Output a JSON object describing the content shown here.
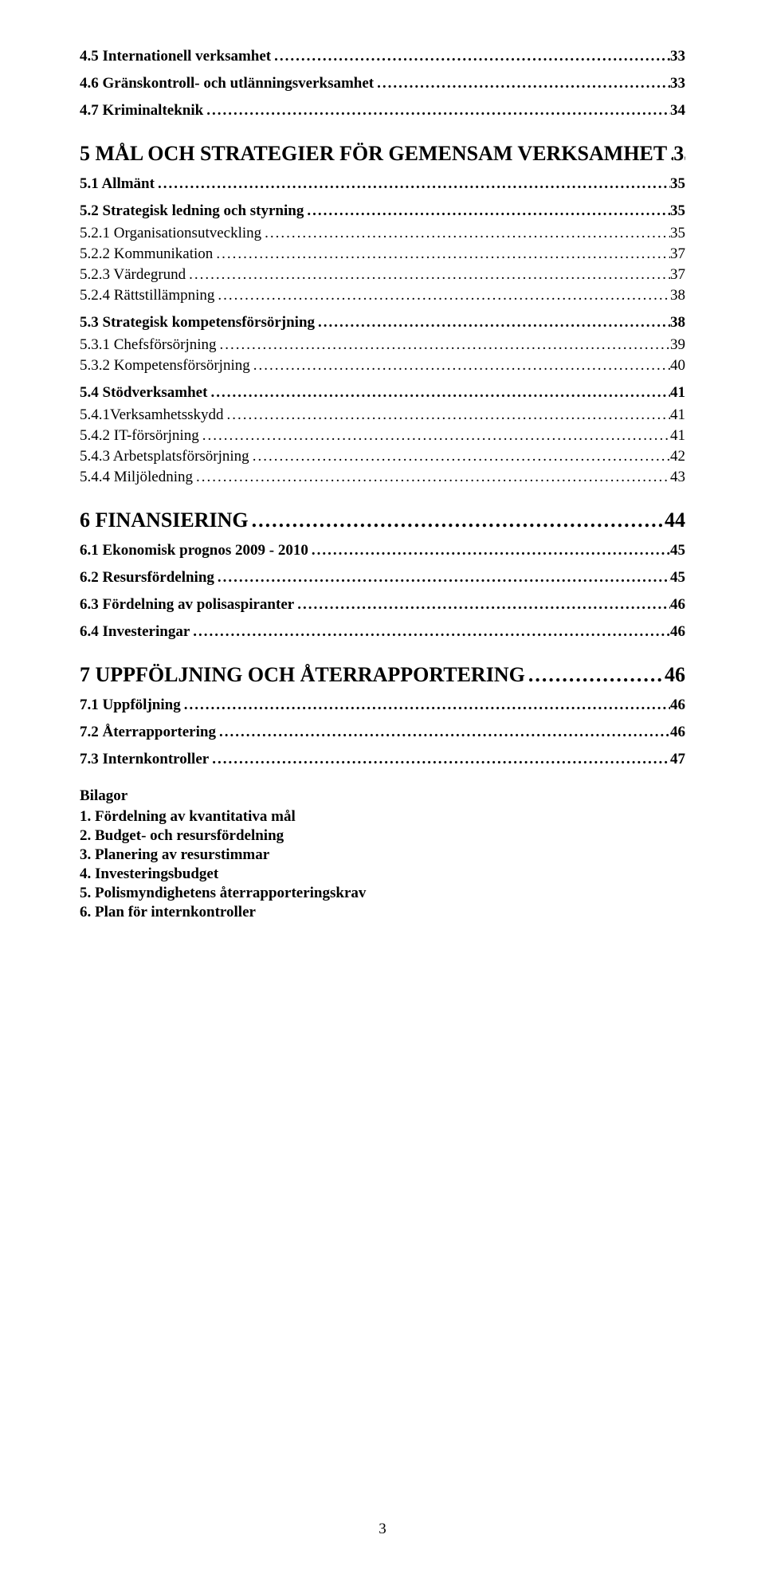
{
  "toc": [
    {
      "level": "h2",
      "label": "4.5 Internationell verksamhet",
      "page": "33"
    },
    {
      "level": "h2",
      "label": "4.6 Gränskontroll- och utlänningsverksamhet",
      "page": "33"
    },
    {
      "level": "h2",
      "label": "4.7 Kriminalteknik",
      "page": "34"
    },
    {
      "level": "h1",
      "label": "5 MÅL OCH STRATEGIER FÖR GEMENSAM VERKSAMHET",
      "page": "35"
    },
    {
      "level": "h2",
      "label": "5.1 Allmänt",
      "page": "35"
    },
    {
      "level": "h2",
      "label": "5.2 Strategisk ledning och styrning",
      "page": "35"
    },
    {
      "level": "h3",
      "label": "5.2.1 Organisationsutveckling",
      "page": "35"
    },
    {
      "level": "h3",
      "label": "5.2.2 Kommunikation",
      "page": "37"
    },
    {
      "level": "h3",
      "label": "5.2.3 Värdegrund",
      "page": "37"
    },
    {
      "level": "h3",
      "label": "5.2.4 Rättstillämpning",
      "page": "38"
    },
    {
      "level": "h2",
      "label": "5.3 Strategisk kompetensförsörjning",
      "page": "38"
    },
    {
      "level": "h3",
      "label": "5.3.1 Chefsförsörjning",
      "page": "39"
    },
    {
      "level": "h3",
      "label": "5.3.2 Kompetensförsörjning",
      "page": "40"
    },
    {
      "level": "h2",
      "label": "5.4 Stödverksamhet",
      "page": "41"
    },
    {
      "level": "h3",
      "label": "5.4.1Verksamhetsskydd",
      "page": "41"
    },
    {
      "level": "h3",
      "label": "5.4.2 IT-försörjning",
      "page": "41"
    },
    {
      "level": "h3",
      "label": "5.4.3 Arbetsplatsförsörjning",
      "page": "42"
    },
    {
      "level": "h3",
      "label": "5.4.4 Miljöledning",
      "page": "43"
    },
    {
      "level": "h1",
      "label": "6 FINANSIERING",
      "page": "44"
    },
    {
      "level": "h2",
      "label": "6.1 Ekonomisk prognos 2009 - 2010",
      "page": "45"
    },
    {
      "level": "h2",
      "label": "6.2 Resursfördelning",
      "page": "45"
    },
    {
      "level": "h2",
      "label": "6.3 Fördelning av polisaspiranter",
      "page": "46"
    },
    {
      "level": "h2",
      "label": "6.4 Investeringar",
      "page": "46"
    },
    {
      "level": "h1",
      "label": "7 UPPFÖLJNING OCH ÅTERRAPPORTERING",
      "page": "46"
    },
    {
      "level": "h2",
      "label": "7.1 Uppföljning",
      "page": "46"
    },
    {
      "level": "h2",
      "label": "7.2 Återrapportering",
      "page": "46"
    },
    {
      "level": "h2",
      "label": "7.3 Internkontroller",
      "page": "47"
    }
  ],
  "bilagor": {
    "title": "Bilagor",
    "items": [
      "1.  Fördelning av kvantitativa mål",
      "2.  Budget- och resursfördelning",
      "3.  Planering av resurstimmar",
      "4.  Investeringsbudget",
      "5.  Polismyndighetens återrapporteringskrav",
      "6.  Plan för internkontroller"
    ]
  },
  "page_number": "3"
}
